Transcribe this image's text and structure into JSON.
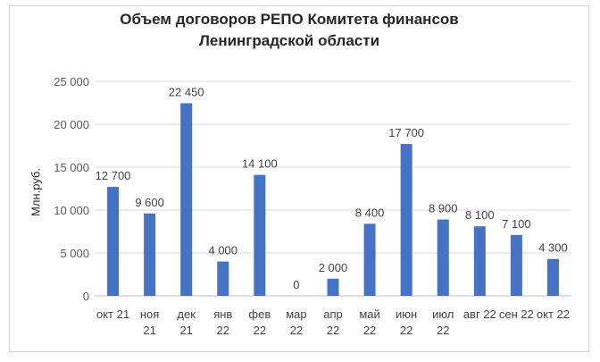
{
  "chart_data": {
    "type": "bar",
    "title_lines": [
      "Объем  договоров РЕПО Комитета финансов",
      "Ленинградской области"
    ],
    "ylabel": "Млн.руб.",
    "xlabel": "",
    "ylim": [
      0,
      25000
    ],
    "yticks": [
      0,
      5000,
      10000,
      15000,
      20000,
      25000
    ],
    "ytick_labels": [
      "0",
      "5 000",
      "10 000",
      "15 000",
      "20 000",
      "25 000"
    ],
    "grid": true,
    "legend": "none",
    "bar_color": "#4472C4",
    "categories": [
      [
        "окт 21"
      ],
      [
        "ноя",
        "21"
      ],
      [
        "дек",
        "21"
      ],
      [
        "янв",
        "22"
      ],
      [
        "фев",
        "22"
      ],
      [
        "мар",
        "22"
      ],
      [
        "апр",
        "22"
      ],
      [
        "май",
        "22"
      ],
      [
        "июн",
        "22"
      ],
      [
        "июл",
        "22"
      ],
      [
        "авг 22"
      ],
      [
        "сен 22"
      ],
      [
        "окт 22"
      ]
    ],
    "values": [
      12700,
      9600,
      22450,
      4000,
      14100,
      0,
      2000,
      8400,
      17700,
      8900,
      8100,
      7100,
      4300
    ],
    "value_labels": [
      "12 700",
      "9 600",
      "22 450",
      "4 000",
      "14 100",
      "0",
      "2 000",
      "8 400",
      "17 700",
      "8 900",
      "8 100",
      "7 100",
      "4 300"
    ]
  }
}
